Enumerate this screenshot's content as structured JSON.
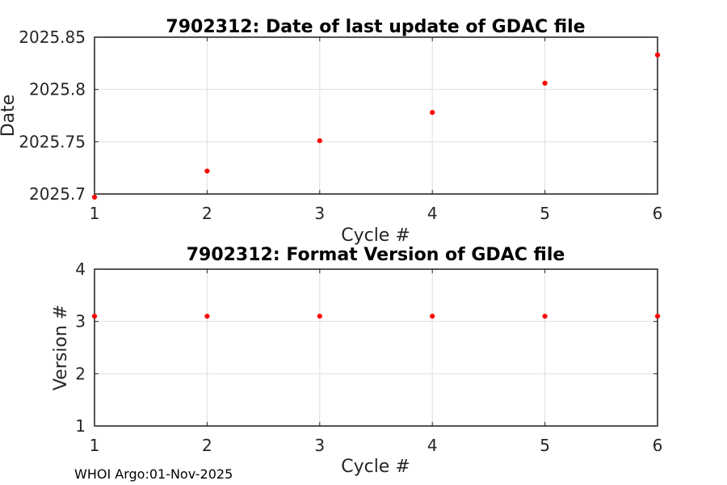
{
  "figure": {
    "background": "#ffffff"
  },
  "footer": {
    "text": "WHOI Argo:01-Nov-2025"
  },
  "colors": {
    "marker": "#ff0000",
    "box": "#1a1a1a",
    "grid": "#dedede",
    "tick": "#262626",
    "tick_label": "#262626",
    "axis_label": "#262626",
    "title": "#000000",
    "footer_text": "#000000"
  },
  "chart_data": [
    {
      "type": "scatter",
      "title": "7902312: Date of last update of GDAC file",
      "xlabel": "Cycle #",
      "ylabel": "Date",
      "x": [
        1,
        2,
        3,
        4,
        5,
        6
      ],
      "y": [
        2025.697,
        2025.722,
        2025.751,
        2025.778,
        2025.806,
        2025.833
      ],
      "xlim": [
        1,
        6
      ],
      "ylim": [
        2025.7,
        2025.85
      ],
      "xticks": [
        1,
        2,
        3,
        4,
        5,
        6
      ],
      "xtick_labels": [
        "1",
        "2",
        "3",
        "4",
        "5",
        "6"
      ],
      "yticks": [
        2025.7,
        2025.75,
        2025.8,
        2025.85
      ],
      "ytick_labels": [
        "2025.7",
        "2025.75",
        "2025.8",
        "2025.85"
      ],
      "grid": true,
      "marker": "point",
      "marker_color": "#ff0000"
    },
    {
      "type": "scatter",
      "title": "7902312: Format Version of GDAC file",
      "xlabel": "Cycle #",
      "ylabel": "Version #",
      "x": [
        1,
        2,
        3,
        4,
        5,
        6
      ],
      "y": [
        3.1,
        3.1,
        3.1,
        3.1,
        3.1,
        3.1
      ],
      "xlim": [
        1,
        6
      ],
      "ylim": [
        1,
        4
      ],
      "xticks": [
        1,
        2,
        3,
        4,
        5,
        6
      ],
      "xtick_labels": [
        "1",
        "2",
        "3",
        "4",
        "5",
        "6"
      ],
      "yticks": [
        1,
        2,
        3,
        4
      ],
      "ytick_labels": [
        "1",
        "2",
        "3",
        "4"
      ],
      "grid": true,
      "marker": "point",
      "marker_color": "#ff0000"
    }
  ]
}
